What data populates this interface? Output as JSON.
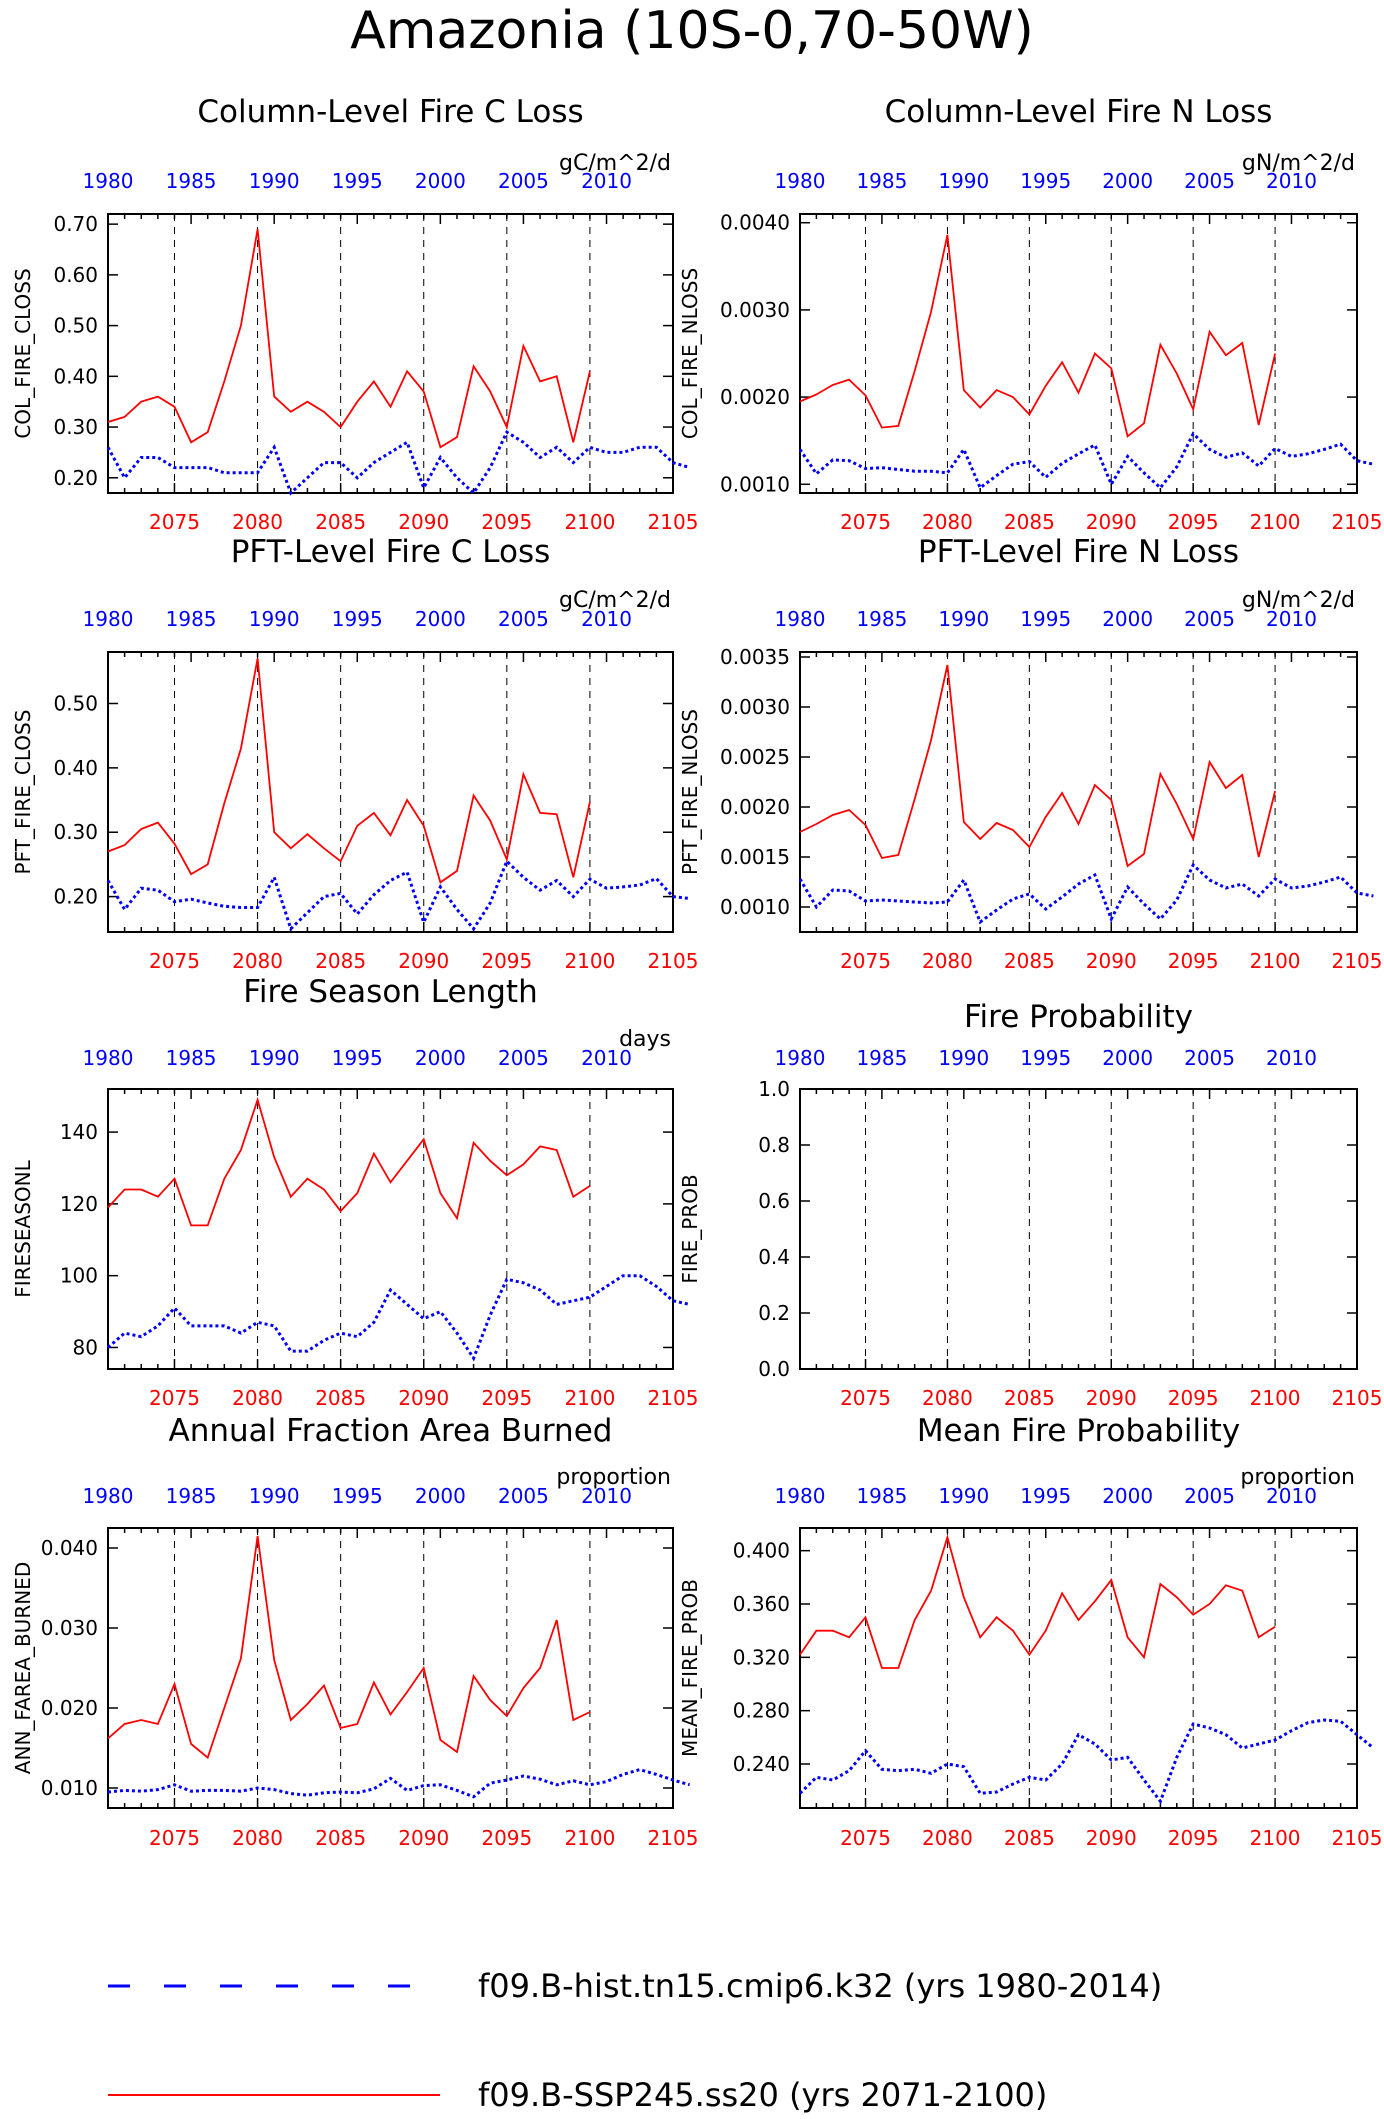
{
  "page": {
    "title": "Amazonia (10S-0,70-50W)"
  },
  "colors": {
    "historical": "#0000ff",
    "future": "#ff0000",
    "axis": "#000000",
    "gridline": "#000000"
  },
  "legend": [
    {
      "label": "f09.B-hist.tn15.cmip6.k32 (yrs 1980-2014)",
      "style": "dotted",
      "color": "#0000ff"
    },
    {
      "label": "f09.B-SSP245.ss20 (yrs 2071-2100)",
      "style": "solid",
      "color": "#ff0000"
    }
  ],
  "chart_data": [
    {
      "type": "line",
      "title": "Column-Level Fire C Loss",
      "ylabel": "COL_FIRE_CLOSS",
      "units": "gC/m^2/d",
      "ylim": [
        0.17,
        0.72
      ],
      "yticks": [
        "0.20",
        "0.30",
        "0.40",
        "0.50",
        "0.60",
        "0.70"
      ],
      "ytick_values": [
        0.2,
        0.3,
        0.4,
        0.5,
        0.6,
        0.7
      ],
      "x_top_ticks": [
        "1980",
        "1985",
        "1990",
        "1995",
        "2000",
        "2005",
        "2010"
      ],
      "x_bottom_ticks": [
        "2075",
        "2080",
        "2085",
        "2090",
        "2095",
        "2100",
        "2105"
      ],
      "series": [
        {
          "x_range": "hist",
          "x_start": 1980,
          "values": [
            0.26,
            0.2,
            0.24,
            0.24,
            0.22,
            0.22,
            0.22,
            0.21,
            0.21,
            0.21,
            0.26,
            0.17,
            0.2,
            0.23,
            0.23,
            0.2,
            0.23,
            0.25,
            0.27,
            0.18,
            0.24,
            0.2,
            0.17,
            0.22,
            0.29,
            0.27,
            0.24,
            0.26,
            0.23,
            0.26,
            0.25,
            0.25,
            0.26,
            0.26,
            0.23,
            0.22
          ]
        },
        {
          "x_range": "future",
          "x_start": 2071,
          "values": [
            0.31,
            0.32,
            0.35,
            0.36,
            0.34,
            0.27,
            0.29,
            0.39,
            0.5,
            0.69,
            0.36,
            0.33,
            0.35,
            0.33,
            0.3,
            0.35,
            0.39,
            0.34,
            0.41,
            0.37,
            0.26,
            0.28,
            0.42,
            0.37,
            0.3,
            0.46,
            0.39,
            0.4,
            0.27,
            0.41
          ]
        }
      ]
    },
    {
      "type": "line",
      "title": "Column-Level Fire N Loss",
      "ylabel": "COL_FIRE_NLOSS",
      "units": "gN/m^2/d",
      "ylim": [
        0.0009,
        0.0041
      ],
      "yticks": [
        "0.0010",
        "0.0020",
        "0.0030",
        "0.0040"
      ],
      "ytick_values": [
        0.001,
        0.002,
        0.003,
        0.004
      ],
      "x_top_ticks": [
        "1980",
        "1985",
        "1990",
        "1995",
        "2000",
        "2005",
        "2010"
      ],
      "x_bottom_ticks": [
        "2075",
        "2080",
        "2085",
        "2090",
        "2095",
        "2100",
        "2105"
      ],
      "series": [
        {
          "x_range": "hist",
          "x_start": 1980,
          "values": [
            0.0014,
            0.00112,
            0.00128,
            0.00127,
            0.00118,
            0.00119,
            0.00117,
            0.00115,
            0.00115,
            0.00113,
            0.0014,
            0.00096,
            0.0011,
            0.00123,
            0.00126,
            0.00108,
            0.00124,
            0.00135,
            0.00145,
            0.001,
            0.00132,
            0.00113,
            0.00096,
            0.0012,
            0.00158,
            0.0014,
            0.00131,
            0.00136,
            0.00121,
            0.00141,
            0.00132,
            0.00135,
            0.0014,
            0.00146,
            0.00127,
            0.00123
          ]
        },
        {
          "x_range": "future",
          "x_start": 2071,
          "values": [
            0.00195,
            0.00203,
            0.00214,
            0.0022,
            0.00202,
            0.00165,
            0.00167,
            0.0023,
            0.00298,
            0.00386,
            0.00208,
            0.00188,
            0.00208,
            0.002,
            0.0018,
            0.00213,
            0.0024,
            0.00205,
            0.0025,
            0.00233,
            0.00155,
            0.0017,
            0.0026,
            0.00227,
            0.00186,
            0.00275,
            0.00248,
            0.00262,
            0.00168,
            0.0025
          ]
        }
      ]
    },
    {
      "type": "line",
      "title": "PFT-Level Fire C Loss",
      "ylabel": "PFT_FIRE_CLOSS",
      "units": "gC/m^2/d",
      "ylim": [
        0.145,
        0.58
      ],
      "yticks": [
        "0.20",
        "0.30",
        "0.40",
        "0.50"
      ],
      "ytick_values": [
        0.2,
        0.3,
        0.4,
        0.5
      ],
      "x_top_ticks": [
        "1980",
        "1985",
        "1990",
        "1995",
        "2000",
        "2005",
        "2010"
      ],
      "x_bottom_ticks": [
        "2075",
        "2080",
        "2085",
        "2090",
        "2095",
        "2100",
        "2105"
      ],
      "series": [
        {
          "x_range": "hist",
          "x_start": 1980,
          "values": [
            0.225,
            0.18,
            0.213,
            0.21,
            0.192,
            0.196,
            0.19,
            0.185,
            0.183,
            0.183,
            0.23,
            0.15,
            0.175,
            0.2,
            0.205,
            0.173,
            0.203,
            0.225,
            0.238,
            0.16,
            0.215,
            0.18,
            0.15,
            0.19,
            0.255,
            0.23,
            0.21,
            0.225,
            0.2,
            0.227,
            0.213,
            0.215,
            0.218,
            0.228,
            0.2,
            0.197
          ]
        },
        {
          "x_range": "future",
          "x_start": 2071,
          "values": [
            0.27,
            0.28,
            0.305,
            0.315,
            0.282,
            0.235,
            0.25,
            0.345,
            0.43,
            0.57,
            0.3,
            0.275,
            0.297,
            0.275,
            0.255,
            0.31,
            0.33,
            0.295,
            0.35,
            0.31,
            0.222,
            0.24,
            0.357,
            0.318,
            0.258,
            0.39,
            0.33,
            0.328,
            0.23,
            0.347
          ]
        }
      ]
    },
    {
      "type": "line",
      "title": "PFT-Level Fire N Loss",
      "ylabel": "PFT_FIRE_NLOSS",
      "units": "gN/m^2/d",
      "ylim": [
        0.00075,
        0.00355
      ],
      "yticks": [
        "0.0010",
        "0.0015",
        "0.0020",
        "0.0025",
        "0.0030",
        "0.0035"
      ],
      "ytick_values": [
        0.001,
        0.0015,
        0.002,
        0.0025,
        0.003,
        0.0035
      ],
      "x_top_ticks": [
        "1980",
        "1985",
        "1990",
        "1995",
        "2000",
        "2005",
        "2010"
      ],
      "x_bottom_ticks": [
        "2075",
        "2080",
        "2085",
        "2090",
        "2095",
        "2100",
        "2105"
      ],
      "series": [
        {
          "x_range": "hist",
          "x_start": 1980,
          "values": [
            0.00128,
            0.001,
            0.00117,
            0.00116,
            0.00106,
            0.00107,
            0.00106,
            0.00105,
            0.00104,
            0.00105,
            0.00127,
            0.00085,
            0.00097,
            0.00108,
            0.00113,
            0.00098,
            0.0011,
            0.00123,
            0.00132,
            0.00088,
            0.0012,
            0.00103,
            0.00088,
            0.00107,
            0.00142,
            0.00127,
            0.00119,
            0.00123,
            0.00111,
            0.00128,
            0.00119,
            0.00121,
            0.00125,
            0.0013,
            0.00114,
            0.00111
          ]
        },
        {
          "x_range": "future",
          "x_start": 2071,
          "values": [
            0.00175,
            0.00183,
            0.00192,
            0.00197,
            0.00182,
            0.00149,
            0.00152,
            0.00208,
            0.00267,
            0.00342,
            0.00185,
            0.00168,
            0.00184,
            0.00177,
            0.0016,
            0.0019,
            0.00214,
            0.00183,
            0.00222,
            0.00207,
            0.00141,
            0.00153,
            0.00233,
            0.00203,
            0.00168,
            0.00245,
            0.00219,
            0.00232,
            0.0015,
            0.00216
          ]
        }
      ]
    },
    {
      "type": "line",
      "title": "Fire Season Length",
      "ylabel": "FIRESEASONL",
      "units": "days",
      "ylim": [
        74,
        152
      ],
      "yticks": [
        "80",
        "100",
        "120",
        "140"
      ],
      "ytick_values": [
        80,
        100,
        120,
        140
      ],
      "x_top_ticks": [
        "1980",
        "1985",
        "1990",
        "1995",
        "2000",
        "2005",
        "2010"
      ],
      "x_bottom_ticks": [
        "2075",
        "2080",
        "2085",
        "2090",
        "2095",
        "2100",
        "2105"
      ],
      "series": [
        {
          "x_range": "hist",
          "x_start": 1980,
          "values": [
            80,
            84,
            83,
            86,
            91,
            86,
            86,
            86,
            84,
            87,
            86,
            79,
            79,
            82,
            84,
            83,
            87,
            96,
            92,
            88,
            90,
            84,
            77,
            89,
            99,
            98,
            96,
            92,
            93,
            94,
            97,
            100,
            100,
            97,
            93,
            92
          ]
        },
        {
          "x_range": "future",
          "x_start": 2071,
          "values": [
            119,
            124,
            124,
            122,
            127,
            114,
            114,
            127,
            135,
            149,
            133,
            122,
            127,
            124,
            118,
            123,
            134,
            126,
            132,
            138,
            123,
            116,
            137,
            132,
            128,
            131,
            136,
            135,
            122,
            125
          ]
        }
      ]
    },
    {
      "type": "line",
      "title": "Fire Probability",
      "ylabel": "FIRE_PROB",
      "units": "",
      "ylim": [
        0.0,
        1.0
      ],
      "yticks": [
        "0.0",
        "0.2",
        "0.4",
        "0.6",
        "0.8",
        "1.0"
      ],
      "ytick_values": [
        0.0,
        0.2,
        0.4,
        0.6,
        0.8,
        1.0
      ],
      "x_top_ticks": [
        "1980",
        "1985",
        "1990",
        "1995",
        "2000",
        "2005",
        "2010"
      ],
      "x_bottom_ticks": [
        "2075",
        "2080",
        "2085",
        "2090",
        "2095",
        "2100",
        "2105"
      ],
      "series": []
    },
    {
      "type": "line",
      "title": "Annual Fraction Area Burned",
      "ylabel": "ANN_FAREA_BURNED",
      "units": "proportion",
      "ylim": [
        0.0075,
        0.0425
      ],
      "yticks": [
        "0.010",
        "0.020",
        "0.030",
        "0.040"
      ],
      "ytick_values": [
        0.01,
        0.02,
        0.03,
        0.04
      ],
      "x_top_ticks": [
        "1980",
        "1985",
        "1990",
        "1995",
        "2000",
        "2005",
        "2010"
      ],
      "x_bottom_ticks": [
        "2075",
        "2080",
        "2085",
        "2090",
        "2095",
        "2100",
        "2105"
      ],
      "series": [
        {
          "x_range": "hist",
          "x_start": 1980,
          "values": [
            0.0095,
            0.0097,
            0.0096,
            0.0098,
            0.0104,
            0.0096,
            0.0097,
            0.0097,
            0.0096,
            0.01,
            0.0098,
            0.0093,
            0.0091,
            0.0094,
            0.0095,
            0.0094,
            0.0099,
            0.0112,
            0.0097,
            0.0103,
            0.0104,
            0.0097,
            0.0089,
            0.0106,
            0.011,
            0.0115,
            0.0111,
            0.0104,
            0.0109,
            0.0104,
            0.0108,
            0.0117,
            0.0123,
            0.0117,
            0.011,
            0.0104
          ]
        },
        {
          "x_range": "future",
          "x_start": 2071,
          "values": [
            0.0162,
            0.018,
            0.0185,
            0.018,
            0.023,
            0.0155,
            0.0138,
            0.02,
            0.0262,
            0.0415,
            0.026,
            0.0185,
            0.0205,
            0.0228,
            0.0175,
            0.018,
            0.0232,
            0.0192,
            0.022,
            0.025,
            0.016,
            0.0145,
            0.024,
            0.021,
            0.019,
            0.0225,
            0.025,
            0.031,
            0.0185,
            0.0195
          ]
        }
      ]
    },
    {
      "type": "line",
      "title": "Mean Fire Probability",
      "ylabel": "MEAN_FIRE_PROB",
      "units": "proportion",
      "ylim": [
        0.207,
        0.417
      ],
      "yticks": [
        "0.240",
        "0.280",
        "0.320",
        "0.360",
        "0.400"
      ],
      "ytick_values": [
        0.24,
        0.28,
        0.32,
        0.36,
        0.4
      ],
      "x_top_ticks": [
        "1980",
        "1985",
        "1990",
        "1995",
        "2000",
        "2005",
        "2010"
      ],
      "x_bottom_ticks": [
        "2075",
        "2080",
        "2085",
        "2090",
        "2095",
        "2100",
        "2105"
      ],
      "series": [
        {
          "x_range": "hist",
          "x_start": 1980,
          "values": [
            0.218,
            0.23,
            0.228,
            0.235,
            0.25,
            0.236,
            0.235,
            0.236,
            0.233,
            0.24,
            0.238,
            0.218,
            0.219,
            0.225,
            0.23,
            0.228,
            0.24,
            0.262,
            0.255,
            0.243,
            0.245,
            0.228,
            0.212,
            0.245,
            0.27,
            0.267,
            0.262,
            0.252,
            0.255,
            0.258,
            0.265,
            0.271,
            0.273,
            0.272,
            0.262,
            0.252
          ]
        },
        {
          "x_range": "future",
          "x_start": 2071,
          "values": [
            0.322,
            0.34,
            0.34,
            0.335,
            0.35,
            0.312,
            0.312,
            0.348,
            0.37,
            0.41,
            0.365,
            0.335,
            0.35,
            0.34,
            0.322,
            0.34,
            0.368,
            0.348,
            0.362,
            0.378,
            0.335,
            0.32,
            0.375,
            0.365,
            0.352,
            0.36,
            0.374,
            0.37,
            0.335,
            0.343
          ]
        }
      ]
    }
  ]
}
